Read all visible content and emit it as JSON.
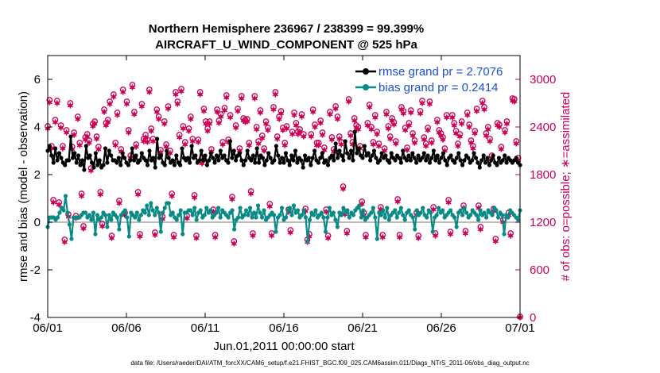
{
  "colors": {
    "rmse": "#000000",
    "bias": "#0a8a84",
    "obs": "#cc0055",
    "legend_text": "#1a4fd6",
    "zero_line": "#bbbbbb"
  },
  "footer": "data file: /Users/raeder/DAI/ATM_forcXX/CAM6_setup/f.e21.FHIST_BGC.f09_025.CAM6assim.011/Diags_NTrS_2011-06/obs_diag_output.nc",
  "chart_data": {
    "type": "line",
    "title_line1": "Northern Hemisphere 236967 / 238399 = 99.399%",
    "title_line2": "AIRCRAFT_U_WIND_COMPONENT @ 525 hPa",
    "xlabel": "Jun.01,2011 00:00:00 start",
    "ylabel_left": "rmse and bias (model - observation)",
    "ylabel_right": "# of obs: o=possible; ∗=assimilated",
    "x_ticks": [
      "06/01",
      "06/06",
      "06/11",
      "06/16",
      "06/21",
      "06/26",
      "07/01"
    ],
    "xlim": [
      0,
      30
    ],
    "ylim_left": [
      -4,
      7
    ],
    "y_ticks_left": [
      "-4",
      "-2",
      "0",
      "2",
      "4",
      "6"
    ],
    "y_tick_values_left": [
      -4,
      -2,
      0,
      2,
      4,
      6
    ],
    "ylim_right": [
      0,
      3300
    ],
    "y_ticks_right": [
      "0",
      "600",
      "1200",
      "1800",
      "2400",
      "3000"
    ],
    "y_tick_values_right": [
      0,
      600,
      1200,
      1800,
      2400,
      3000
    ],
    "legend": [
      {
        "name": "rmse",
        "label": "rmse grand pr = 2.7076"
      },
      {
        "name": "bias",
        "label": "bias grand pr = 0.2414"
      }
    ],
    "series": [
      {
        "name": "rmse",
        "axis": "left",
        "values": [
          3.0,
          3.2,
          2.8,
          2.5,
          3.1,
          2.6,
          2.9,
          2.7,
          2.5,
          2.4,
          2.6,
          2.6,
          3.6,
          2.7,
          2.9,
          2.5,
          2.8,
          2.4,
          2.6,
          2.2,
          3.2,
          2.7,
          2.8,
          2.5,
          2.3,
          2.9,
          2.4,
          2.6,
          2.3,
          2.4,
          3.1,
          2.5,
          3.0,
          2.8,
          2.6,
          2.6,
          2.5,
          2.7,
          2.4,
          2.9,
          2.7,
          2.5,
          2.4,
          2.6,
          3.1,
          2.6,
          2.8,
          2.5,
          2.6,
          2.9,
          2.7,
          2.6,
          2.4,
          3.0,
          2.6,
          2.7,
          2.3,
          3.5,
          2.7,
          2.8,
          2.5,
          2.4,
          3.0,
          2.7,
          2.5,
          2.6,
          2.4,
          2.8,
          2.5,
          2.4,
          3.1,
          2.7,
          2.6,
          2.7,
          2.5,
          3.2,
          2.7,
          2.8,
          2.5,
          2.6,
          3.0,
          2.6,
          2.8,
          2.4,
          2.6,
          2.9,
          2.7,
          2.5,
          2.8,
          2.6,
          3.0,
          2.7,
          2.8,
          2.6,
          2.5,
          3.4,
          2.7,
          3.0,
          2.6,
          2.8,
          2.9,
          2.6,
          2.4,
          2.6,
          3.0,
          2.7,
          2.6,
          2.8,
          2.5,
          3.1,
          2.5,
          2.8,
          2.7,
          2.4,
          2.6,
          2.9,
          2.7,
          2.5,
          2.6,
          3.2,
          2.8,
          2.5,
          2.7,
          2.5,
          2.9,
          2.6,
          2.4,
          2.8,
          2.6,
          3.0,
          2.5,
          2.7,
          2.6,
          2.3,
          2.8,
          2.6,
          2.7,
          2.4,
          2.7,
          3.0,
          2.6,
          2.5,
          2.7,
          2.9,
          2.5,
          2.6,
          2.4,
          2.7,
          2.8,
          2.6,
          3.3,
          2.7,
          3.0,
          2.8,
          2.6,
          3.4,
          2.9,
          2.7,
          3.0,
          2.6,
          3.8,
          2.9,
          3.1,
          2.8,
          2.7,
          3.2,
          2.8,
          2.9,
          2.6,
          2.8,
          3.0,
          2.7,
          2.5,
          2.6,
          2.9,
          2.7,
          2.8,
          2.6,
          2.5,
          2.9,
          2.7,
          2.6,
          2.8,
          2.7,
          2.5,
          3.0,
          2.7,
          2.6,
          2.8,
          2.6,
          2.9,
          2.7,
          2.5,
          2.8,
          2.6,
          2.7,
          2.9,
          2.6,
          2.8,
          2.5,
          2.7,
          3.0,
          2.6,
          2.8,
          2.5,
          2.7,
          2.9,
          2.6,
          2.4,
          2.7,
          2.8,
          2.6,
          2.5,
          2.7,
          2.9,
          2.6,
          2.4,
          2.6,
          2.8,
          2.7,
          2.5,
          2.6,
          2.9,
          2.7,
          2.5,
          2.3,
          2.6,
          2.8,
          2.5,
          2.7,
          2.4,
          2.6,
          2.8,
          2.5,
          2.4,
          2.7,
          2.5,
          2.6,
          2.8,
          2.5,
          2.7,
          2.6,
          2.5,
          2.6,
          2.7,
          2.5,
          2.4
        ]
      },
      {
        "name": "bias",
        "axis": "left",
        "values": [
          -0.2,
          0.2,
          0.2,
          0.2,
          0.1,
          0.2,
          0.4,
          0.6,
          0.5,
          1.1,
          0.4,
          -0.1,
          -0.7,
          0.2,
          0.2,
          0.2,
          0.2,
          0.3,
          0.4,
          0.4,
          0.2,
          0.3,
          0.1,
          0.4,
          -0.5,
          0.3,
          0.1,
          0.2,
          0.4,
          0.3,
          -0.2,
          0.3,
          0.1,
          0.4,
          0.3,
          0.2,
          -0.3,
          0.3,
          0.4,
          0.5,
          0.2,
          -0.6,
          0.4,
          0.3,
          0.2,
          0.4,
          0.1,
          0.3,
          0.5,
          0.4,
          0.7,
          0.3,
          0.8,
          0.5,
          0.3,
          0.6,
          0.4,
          -0.4,
          0.4,
          0.6,
          0.8,
          0.8,
          0.3,
          0.4,
          0.2,
          0.1,
          0.3,
          0.5,
          -0.5,
          0.4,
          0.4,
          0.5,
          0.5,
          0.3,
          0.6,
          0.1,
          0.4,
          0.5,
          0.2,
          0.3,
          0.6,
          0.4,
          0.5,
          0.2,
          0.3,
          0.4,
          0.6,
          0.2,
          0.5,
          0.4,
          0.3,
          0.2,
          0.4,
          0.5,
          -0.3,
          0.1,
          0.2,
          0.6,
          0.2,
          0.3,
          0.5,
          0.3,
          0.6,
          0.2,
          0.4,
          0.2,
          0.7,
          0.4,
          0.2,
          0.5,
          0.1,
          0.2,
          0.3,
          0.4,
          0.3,
          -0.4,
          0.2,
          0.3,
          0.6,
          0.1,
          0.2,
          0.5,
          0.6,
          0.3,
          0.7,
          0.4,
          0.5,
          0.2,
          0.3,
          0.5,
          0.2,
          -0.8,
          0.1,
          0.4,
          0.3,
          0.5,
          0.2,
          0.3,
          0.4,
          0.2,
          -0.4,
          0.2,
          0.6,
          0.3,
          0.4,
          0.1,
          -0.2,
          0.4,
          0.3,
          0.6,
          0.4,
          0.5,
          0.2,
          0.4,
          0.3,
          0.5,
          0.6,
          0.7,
          0.2,
          0.5,
          0.1,
          0.2,
          0.3,
          0.4,
          0.6,
          0.2,
          -0.7,
          0.4,
          0.3,
          0.5,
          0.2,
          0.6,
          0.1,
          0.3,
          0.4,
          0.5,
          0.2,
          0.4,
          0.6,
          0.3,
          0.1,
          0.4,
          0.5,
          0.3,
          0.2,
          -0.3,
          0.5,
          0.3,
          0.4,
          0.6,
          0.3,
          0.2,
          0.5,
          0.4,
          -0.4,
          0.2,
          0.3,
          0.6,
          0.4,
          0.5,
          0.2,
          0.3,
          0.4,
          0.5,
          0.3,
          0.2,
          -0.2,
          0.4,
          0.5,
          0.3,
          0.6,
          0.4,
          0.2,
          0.3,
          0.5,
          0.4,
          0.3,
          0.1,
          0.5,
          0.3,
          0.4,
          0.2,
          0.5,
          0.4,
          0.3,
          0.6,
          0.5,
          0.2,
          0.4,
          0.3,
          -0.5,
          0.3,
          0.2,
          0.5,
          0.4,
          0.3,
          0.2,
          0.1,
          0.5
        ]
      },
      {
        "name": "obs_assimilated",
        "axis": "right",
        "values": [
          2380,
          2710,
          2130,
          1450,
          2460,
          2700,
          1420,
          2390,
          2130,
          950,
          2330,
          1270,
          2670,
          2120,
          2300,
          1250,
          2500,
          2170,
          1530,
          1120,
          2240,
          2280,
          2200,
          1850,
          2410,
          2440,
          2250,
          2120,
          1550,
          1150,
          2590,
          2420,
          2460,
          2690,
          1000,
          2780,
          2170,
          2550,
          1440,
          2090,
          2840,
          1290,
          2690,
          2330,
          2010,
          2900,
          2560,
          2150,
          1550,
          1020,
          2660,
          2220,
          2270,
          2210,
          2840,
          2350,
          2220,
          1040,
          2590,
          2500,
          2080,
          1240,
          2440,
          2150,
          2630,
          2070,
          1530,
          1010,
          2810,
          2690,
          2270,
          2850,
          2380,
          2180,
          1250,
          2350,
          2500,
          2220,
          1510,
          1000,
          2210,
          2810,
          1940,
          2600,
          2440,
          2350,
          2440,
          2090,
          1330,
          1010,
          2590,
          2450,
          2530,
          2180,
          2610,
          2770,
          2210,
          2520,
          1490,
          930,
          2390,
          2600,
          2100,
          2760,
          2480,
          2460,
          2470,
          2170,
          1560,
          1030,
          2760,
          2370,
          2190,
          2580,
          2260,
          2100,
          2440,
          2360,
          1400,
          1030,
          2620,
          2810,
          2250,
          2500,
          2570,
          2360,
          2170,
          2380,
          1330,
          1070,
          2310,
          2550,
          2420,
          2310,
          2340,
          2530,
          2280,
          1340,
          950,
          1020,
          2280,
          2590,
          2400,
          2170,
          2170,
          2450,
          2300,
          2110,
          1330,
          1000,
          2560,
          2240,
          2090,
          2630,
          2500,
          2250,
          2180,
          1620,
          1300,
          1060,
          2720,
          2290,
          2180,
          2480,
          2390,
          2370,
          2130,
          1430,
          1290,
          1010,
          2420,
          2650,
          2370,
          2180,
          2520,
          2310,
          2160,
          1360,
          1010,
          2100,
          2560,
          2380,
          2250,
          2480,
          2430,
          2190,
          1460,
          1010,
          2620,
          2570,
          2360,
          2110,
          2420,
          2580,
          2290,
          2200,
          1290,
          1000,
          2570,
          2700,
          2240,
          2160,
          2360,
          2690,
          2200,
          1360,
          1030,
          2460,
          2330,
          2290,
          2240,
          2100,
          2520,
          1450,
          1050,
          2520,
          2420,
          2320,
          2160,
          2280,
          2440,
          1380,
          1060,
          2550,
          2400,
          2200,
          2130,
          2320,
          2600,
          1380,
          1110,
          2700,
          2620,
          2290,
          2370,
          2220,
          2010,
          1340,
          960,
          2420,
          2400,
          2120,
          1200,
          2330,
          2440,
          1290,
          1030,
          2730,
          2720,
          2190,
          1980,
          0
        ]
      },
      {
        "name": "obs_possible",
        "axis": "right",
        "values": [
          2400,
          2730,
          2150,
          1470,
          2480,
          2720,
          1440,
          2410,
          2150,
          970,
          2350,
          1290,
          2690,
          2140,
          2320,
          1270,
          2520,
          2190,
          1550,
          1140,
          2260,
          2300,
          2220,
          1870,
          2430,
          2460,
          2270,
          2140,
          1570,
          1170,
          2610,
          2440,
          2480,
          2710,
          1020,
          2800,
          2190,
          2570,
          1460,
          2110,
          2860,
          1310,
          2710,
          2350,
          2030,
          2920,
          2580,
          2170,
          1570,
          1040,
          2680,
          2240,
          2290,
          2230,
          2860,
          2370,
          2240,
          1060,
          2610,
          2520,
          2100,
          1260,
          2460,
          2170,
          2650,
          2090,
          1550,
          1030,
          2830,
          2710,
          2290,
          2870,
          2400,
          2200,
          1270,
          2370,
          2520,
          2240,
          1530,
          1020,
          2230,
          2830,
          1960,
          2620,
          2460,
          2370,
          2460,
          2110,
          1350,
          1030,
          2610,
          2470,
          2550,
          2200,
          2630,
          2790,
          2230,
          2540,
          1510,
          950,
          2410,
          2620,
          2120,
          2780,
          2500,
          2480,
          2490,
          2190,
          1580,
          1050,
          2780,
          2390,
          2210,
          2600,
          2280,
          2120,
          2460,
          2380,
          1420,
          1050,
          2640,
          2830,
          2270,
          2520,
          2590,
          2380,
          2190,
          2400,
          1350,
          1090,
          2330,
          2570,
          2440,
          2330,
          2360,
          2550,
          2300,
          1360,
          970,
          1040,
          2300,
          2610,
          2420,
          2190,
          2190,
          2470,
          2320,
          2130,
          1350,
          1020,
          2580,
          2260,
          2110,
          2650,
          2520,
          2270,
          2200,
          1640,
          1320,
          1080,
          2740,
          2310,
          2200,
          2500,
          2410,
          2390,
          2150,
          1450,
          1310,
          1030,
          2440,
          2670,
          2390,
          2200,
          2540,
          2330,
          2180,
          1380,
          1030,
          2120,
          2580,
          2400,
          2270,
          2500,
          2450,
          2210,
          1480,
          1030,
          2640,
          2590,
          2380,
          2130,
          2440,
          2600,
          2310,
          2220,
          1310,
          1020,
          2590,
          2720,
          2260,
          2180,
          2380,
          2710,
          2220,
          1380,
          1050,
          2480,
          2350,
          2310,
          2260,
          2120,
          2540,
          1470,
          1070,
          2540,
          2440,
          2340,
          2180,
          2300,
          2460,
          1400,
          1080,
          2570,
          2420,
          2220,
          2150,
          2340,
          2620,
          1400,
          1130,
          2720,
          2640,
          2310,
          2390,
          2240,
          2030,
          1360,
          980,
          2440,
          2420,
          2140,
          1220,
          2350,
          2460,
          1310,
          1050,
          2750,
          2740,
          2210,
          2000,
          0
        ]
      }
    ]
  }
}
